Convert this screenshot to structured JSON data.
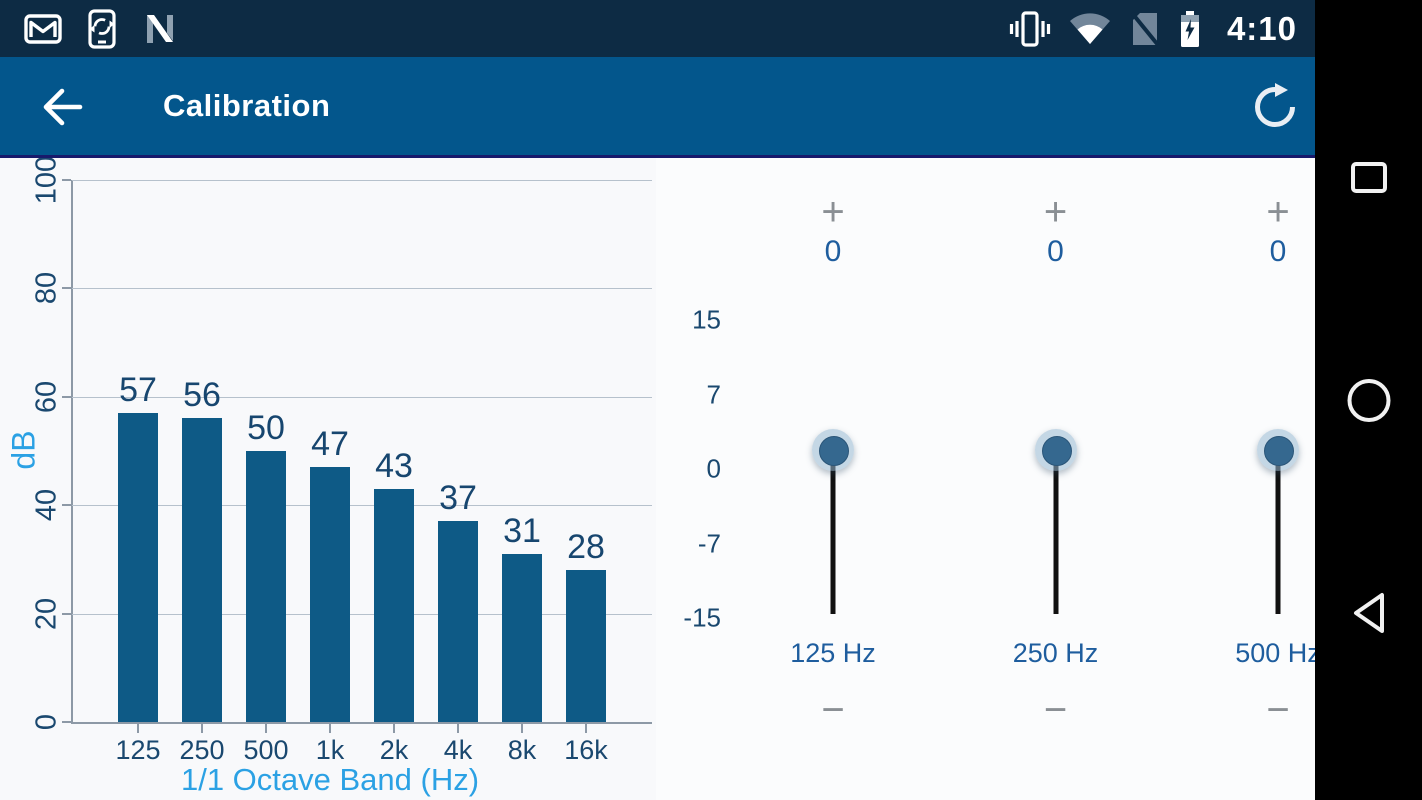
{
  "status_bar": {
    "time": "4:10",
    "left_icons": [
      "gmail",
      "phone-sync",
      "android-n"
    ],
    "right_icons": [
      "vibrate",
      "wifi",
      "no-sim",
      "battery-charging"
    ]
  },
  "app_bar": {
    "title": "Calibration"
  },
  "chart_data": {
    "type": "bar",
    "title": "",
    "categories": [
      "125",
      "250",
      "500",
      "1k",
      "2k",
      "4k",
      "8k",
      "16k"
    ],
    "values": [
      57,
      56,
      50,
      47,
      43,
      37,
      31,
      28
    ],
    "xlabel": "1/1 Octave Band (Hz)",
    "ylabel": "dB",
    "yticks": [
      0,
      20,
      40,
      60,
      80,
      100
    ],
    "ylim": [
      0,
      100
    ],
    "grid": true,
    "legend": false,
    "tick_label_rotation_deg": -90,
    "bar_color": "#0e5a86"
  },
  "equalizer": {
    "scale_labels": [
      "15",
      "7",
      "0",
      "-7",
      "-15"
    ],
    "plus_symbol": "+",
    "minus_symbol": "−",
    "sliders": [
      {
        "band": "125 Hz",
        "value": "0"
      },
      {
        "band": "250 Hz",
        "value": "0"
      },
      {
        "band": "500 Hz",
        "value": "0"
      }
    ]
  },
  "nav_bar": {
    "buttons": [
      "recents",
      "home",
      "back"
    ]
  },
  "colors": {
    "status_bar_bg": "#0d2b44",
    "app_bar_bg": "#03568c",
    "app_bar_underline": "#181a6c",
    "bar_fill": "#0e5a86",
    "axis_text": "#1a486f",
    "accent_light_blue": "#2ba1e4",
    "eq_value_blue": "#1e5d9e",
    "nav_bar_bg": "#000000"
  }
}
